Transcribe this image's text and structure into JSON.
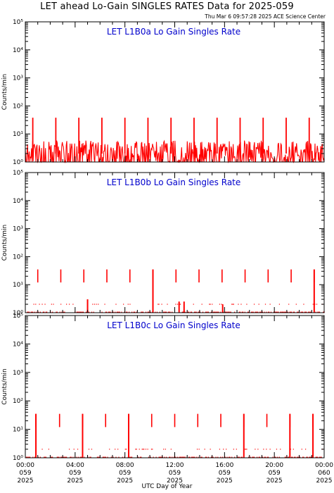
{
  "title": "LET ahead Lo-Gain SINGLES RATES Data for 2025-059",
  "credit": "Thu Mar  6 09:57:28 2025 ACE Science Center",
  "x_axis_label": "UTC Day of Year",
  "colors": {
    "data": "#ff0000",
    "panel_label": "#0000cc",
    "axes": "#000000"
  },
  "chart_data": [
    {
      "type": "line",
      "panel_label": "LET L1B0a Lo Gain Singles Rate",
      "ylabel": "Counts/min",
      "yscale": "log",
      "ylim": [
        1,
        100000
      ],
      "y_ticks": [
        "10⁰",
        "10¹",
        "10²",
        "10³",
        "10⁴",
        "10⁵"
      ],
      "xlim": [
        0,
        24
      ],
      "baseline": "noisy between 1 and about 6 counts/min",
      "spikes": {
        "x_hours": [
          0.6,
          2.45,
          4.3,
          6.15,
          8.0,
          9.85,
          11.7,
          13.55,
          15.4,
          17.25,
          19.1,
          20.95,
          22.8
        ],
        "y": 38
      }
    },
    {
      "type": "line",
      "panel_label": "LET L1B0b Lo Gain Singles Rate",
      "ylabel": "Counts/min",
      "yscale": "log",
      "ylim": [
        1,
        100000
      ],
      "y_ticks": [
        "10⁰",
        "10¹",
        "10²",
        "10³",
        "10⁴",
        "10⁵"
      ],
      "xlim": [
        0,
        24
      ],
      "baseline": "sparse points near 1 and 2 counts/min",
      "spikes": {
        "x_hours": [
          1.0,
          2.85,
          4.7,
          6.55,
          8.4,
          10.25,
          12.1,
          13.95,
          15.8,
          17.65,
          19.5,
          21.35,
          23.2
        ],
        "y": 35
      },
      "tall_segments": [
        {
          "x": 10.25,
          "y_from": 1,
          "y_to": 35
        },
        {
          "x": 23.2,
          "y_from": 1,
          "y_to": 35
        },
        {
          "x": 12.35,
          "y_from": 1,
          "y_to": 2.5
        },
        {
          "x": 12.75,
          "y_from": 1,
          "y_to": 2.5
        },
        {
          "x": 15.85,
          "y_from": 1,
          "y_to": 2
        },
        {
          "x": 5.0,
          "y_from": 1,
          "y_to": 3
        }
      ]
    },
    {
      "type": "line",
      "panel_label": "LET L1B0c Lo Gain Singles Rate",
      "ylabel": "Counts/min",
      "yscale": "log",
      "ylim": [
        1,
        100000
      ],
      "y_ticks": [
        "10⁰",
        "10¹",
        "10²",
        "10³",
        "10⁴",
        "10⁵"
      ],
      "xlim": [
        0,
        24
      ],
      "baseline": "sparse points near 1 and 2 counts/min",
      "spikes": {
        "x_hours": [
          0.85,
          2.75,
          4.6,
          6.45,
          8.3,
          10.15,
          12.0,
          13.85,
          15.7,
          17.55,
          19.4,
          21.25,
          23.1
        ],
        "y": 35
      },
      "tall_segments": [
        {
          "x": 0.85,
          "y_from": 1,
          "y_to": 35
        },
        {
          "x": 4.6,
          "y_from": 1,
          "y_to": 35
        },
        {
          "x": 8.3,
          "y_from": 1,
          "y_to": 35
        },
        {
          "x": 17.55,
          "y_from": 1,
          "y_to": 35
        },
        {
          "x": 21.25,
          "y_from": 1,
          "y_to": 35
        },
        {
          "x": 23.1,
          "y_from": 1,
          "y_to": 35
        }
      ],
      "x_ticks": [
        {
          "time": "00:00",
          "doy": "059",
          "year": "2025"
        },
        {
          "time": "04:00",
          "doy": "059",
          "year": "2025"
        },
        {
          "time": "08:00",
          "doy": "059",
          "year": "2025"
        },
        {
          "time": "12:00",
          "doy": "059",
          "year": "2025"
        },
        {
          "time": "16:00",
          "doy": "059",
          "year": "2025"
        },
        {
          "time": "20:00",
          "doy": "059",
          "year": "2025"
        },
        {
          "time": "00:00",
          "doy": "060",
          "year": "2025"
        }
      ]
    }
  ]
}
